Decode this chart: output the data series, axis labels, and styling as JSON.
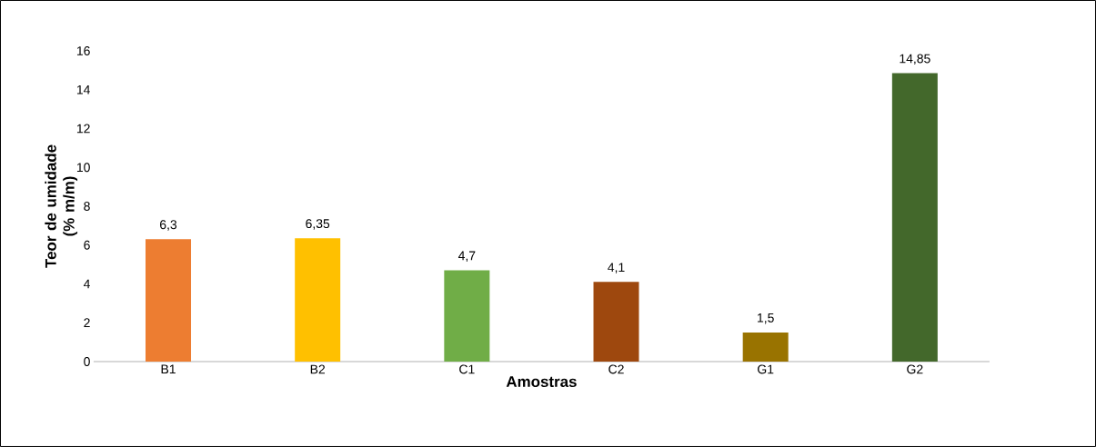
{
  "chart_data": {
    "type": "bar",
    "xlabel": "Amostras",
    "ylabel": "Teor de umidade (% m/m)",
    "categories": [
      "B1",
      "B2",
      "C1",
      "C2",
      "G1",
      "G2"
    ],
    "values": [
      6.3,
      6.35,
      4.7,
      4.1,
      1.5,
      14.85
    ],
    "colors": [
      "#ed7d31",
      "#ffc000",
      "#70ad47",
      "#9e480e",
      "#997300",
      "#43682b"
    ],
    "value_labels": [
      "6,3",
      "6,35",
      "4,7",
      "4,1",
      "1,5",
      "14,85"
    ],
    "ylim": [
      0,
      16
    ],
    "yticks": [
      0,
      2,
      4,
      6,
      8,
      10,
      12,
      14,
      16
    ]
  }
}
